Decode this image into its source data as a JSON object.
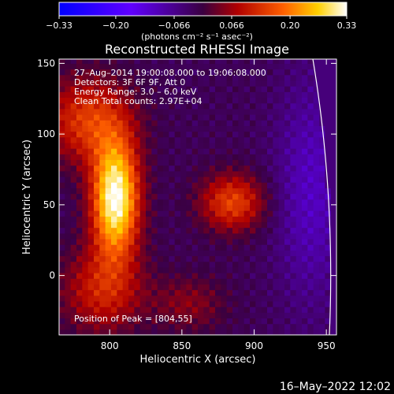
{
  "chart_data": {
    "type": "heatmap",
    "title": "Reconstructed RHESSI Image",
    "xlabel": "Heliocentric X (arcsec)",
    "ylabel": "Heliocentric Y (arcsec)",
    "xlim": [
      765,
      957
    ],
    "ylim": [
      -42,
      153
    ],
    "x_ticks": [
      800,
      850,
      900,
      950
    ],
    "x_tick_labels": [
      "800",
      "850",
      "900",
      "950"
    ],
    "y_ticks": [
      0,
      50,
      100,
      150
    ],
    "y_tick_labels": [
      "0",
      "50",
      "100",
      "150"
    ],
    "colorbar": {
      "range": [
        -0.33,
        0.33
      ],
      "ticks": [
        -0.33,
        -0.2,
        -0.066,
        0.066,
        0.2,
        0.33
      ],
      "tick_labels": [
        "−0.33",
        "−0.20",
        "−0.066",
        "0.066",
        "0.20",
        "0.33"
      ],
      "unit_label": "(photons cm⁻² s⁻¹ asec⁻²)"
    },
    "annotations": [
      "27–Aug–2014 19:00:08.000 to 19:06:08.000",
      "Detectors: 3F 6F 9F, Att 0",
      "Energy Range: 3.0 – 6.0 keV",
      "Clean     Total counts: 2.97E+04"
    ],
    "peak_label": "Position of Peak = [804,55]",
    "peak": [
      804,
      55
    ],
    "limb_arc": {
      "radius_arcsec": 953
    }
  },
  "footer": {
    "timestamp": "16–May–2022 12:02"
  }
}
